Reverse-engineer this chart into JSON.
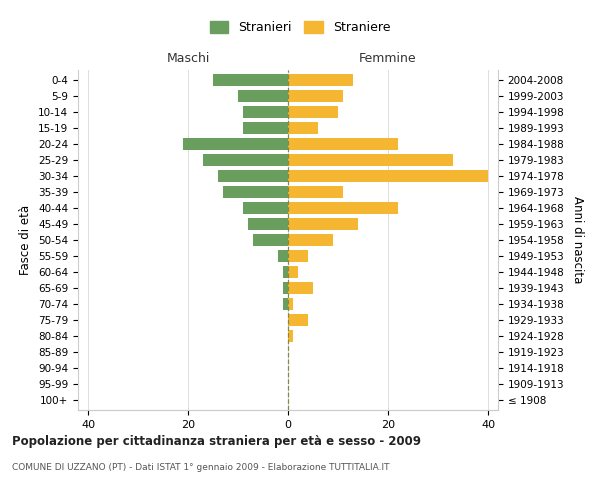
{
  "age_groups": [
    "100+",
    "95-99",
    "90-94",
    "85-89",
    "80-84",
    "75-79",
    "70-74",
    "65-69",
    "60-64",
    "55-59",
    "50-54",
    "45-49",
    "40-44",
    "35-39",
    "30-34",
    "25-29",
    "20-24",
    "15-19",
    "10-14",
    "5-9",
    "0-4"
  ],
  "birth_years": [
    "≤ 1908",
    "1909-1913",
    "1914-1918",
    "1919-1923",
    "1924-1928",
    "1929-1933",
    "1934-1938",
    "1939-1943",
    "1944-1948",
    "1949-1953",
    "1954-1958",
    "1959-1963",
    "1964-1968",
    "1969-1973",
    "1974-1978",
    "1979-1983",
    "1984-1988",
    "1989-1993",
    "1994-1998",
    "1999-2003",
    "2004-2008"
  ],
  "maschi": [
    0,
    0,
    0,
    0,
    0,
    0,
    1,
    1,
    1,
    2,
    7,
    8,
    9,
    13,
    14,
    17,
    21,
    9,
    9,
    10,
    15
  ],
  "femmine": [
    0,
    0,
    0,
    0,
    1,
    4,
    1,
    5,
    2,
    4,
    9,
    14,
    22,
    11,
    40,
    33,
    22,
    6,
    10,
    11,
    13
  ],
  "color_maschi": "#6a9e5e",
  "color_femmine": "#f5b731",
  "title": "Popolazione per cittadinanza straniera per età e sesso - 2009",
  "subtitle": "COMUNE DI UZZANO (PT) - Dati ISTAT 1° gennaio 2009 - Elaborazione TUTTITALIA.IT",
  "xlabel_maschi": "Maschi",
  "xlabel_femmine": "Femmine",
  "ylabel_left": "Fasce di età",
  "ylabel_right": "Anni di nascita",
  "legend_maschi": "Stranieri",
  "legend_femmine": "Straniere",
  "xlim": [
    -42,
    42
  ],
  "xticks": [
    -40,
    -20,
    0,
    20,
    40
  ],
  "xticklabels": [
    "40",
    "20",
    "0",
    "20",
    "40"
  ],
  "bg_color": "#ffffff",
  "grid_color": "#d8d8d8",
  "bar_height": 0.75
}
